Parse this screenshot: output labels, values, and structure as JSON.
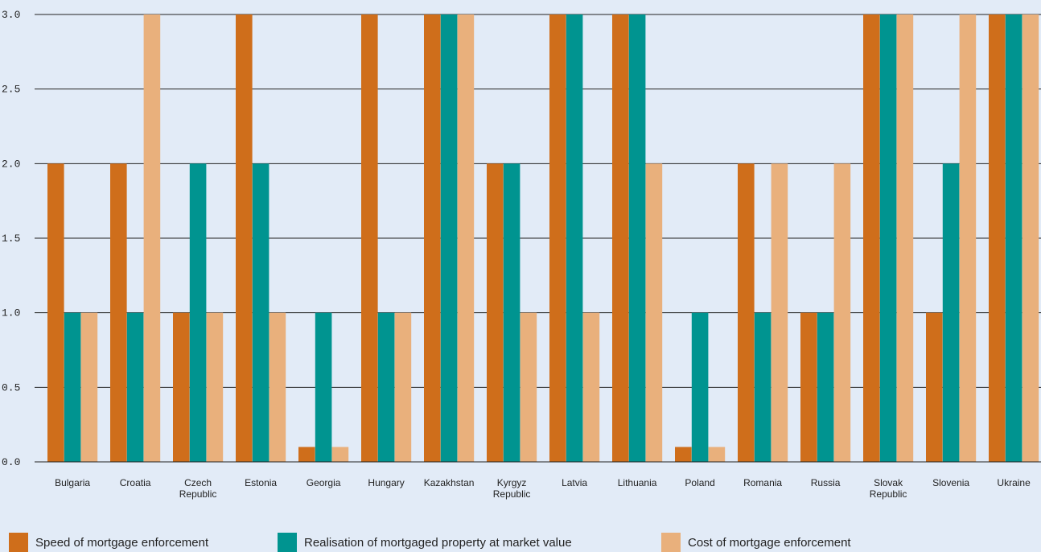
{
  "chart_data": {
    "type": "bar",
    "title": "",
    "xlabel": "",
    "ylabel": "",
    "ylim": [
      0,
      3.0
    ],
    "yticks": [
      "0.0",
      "0.5",
      "1.0",
      "1.5",
      "2.0",
      "2.5",
      "3.0"
    ],
    "grid": true,
    "legend_position": "bottom",
    "categories": [
      [
        "Bulgaria"
      ],
      [
        "Croatia"
      ],
      [
        "Czech",
        "Republic"
      ],
      [
        "Estonia"
      ],
      [
        "Georgia"
      ],
      [
        "Hungary"
      ],
      [
        "Kazakhstan"
      ],
      [
        "Kyrgyz",
        "Republic"
      ],
      [
        "Latvia"
      ],
      [
        "Lithuania"
      ],
      [
        "Poland"
      ],
      [
        "Romania"
      ],
      [
        "Russia"
      ],
      [
        "Slovak",
        "Republic"
      ],
      [
        "Slovenia"
      ],
      [
        "Ukraine"
      ]
    ],
    "series": [
      {
        "name": "Speed of mortgage enforcement",
        "color": "#cf6e1b",
        "values": [
          2,
          2,
          1,
          3,
          0.1,
          3,
          3,
          2,
          3,
          3,
          0.1,
          2,
          1,
          3,
          1,
          3
        ]
      },
      {
        "name": "Realisation of mortgaged property at market value",
        "color": "#009490",
        "values": [
          1,
          1,
          2,
          2,
          1,
          1,
          3,
          2,
          3,
          3,
          1,
          1,
          1,
          3,
          2,
          3
        ]
      },
      {
        "name": "Cost of mortgage enforcement",
        "color": "#e9b07c",
        "values": [
          1,
          3,
          1,
          1,
          0.1,
          1,
          3,
          1,
          1,
          2,
          0.1,
          2,
          2,
          3,
          3,
          3
        ]
      }
    ]
  }
}
